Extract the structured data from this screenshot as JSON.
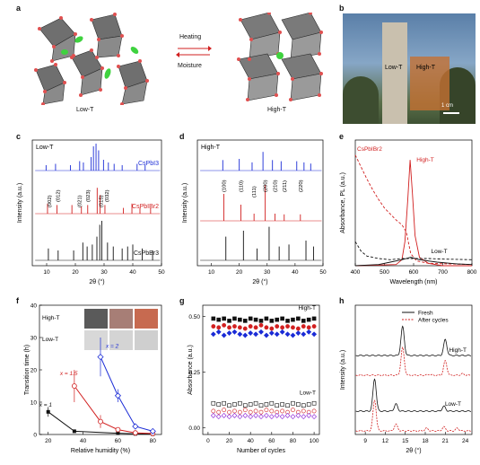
{
  "labels": {
    "a": "a",
    "b": "b",
    "c": "c",
    "d": "d",
    "e": "e",
    "f": "f",
    "g": "g",
    "h": "h"
  },
  "panel_a": {
    "low_label": "Low-T",
    "high_label": "High-T",
    "heating": "Heating",
    "moisture": "Moisture",
    "colors": {
      "octahedron": "#6f6f6f",
      "vertex": "#e05050",
      "cs": "#3fd23f"
    }
  },
  "panel_b": {
    "low_label": "Low-T",
    "high_label": "High-T",
    "scale": "1 cm"
  },
  "chart_data": [
    {
      "panel": "c",
      "type": "line",
      "title": "Low-T",
      "xlabel": "2θ (°)",
      "ylabel": "Intensity (a.u.)",
      "xlim": [
        5,
        50
      ],
      "xticks": [
        10,
        20,
        30,
        40,
        50
      ],
      "series": [
        {
          "name": "CsPbI3",
          "color": "#1a2bd6",
          "peaks": [
            [
              9.8,
              0.2
            ],
            [
              13.1,
              0.25
            ],
            [
              18.3,
              0.2
            ],
            [
              21.5,
              0.35
            ],
            [
              22.8,
              0.3
            ],
            [
              25.5,
              0.5
            ],
            [
              26.3,
              0.9
            ],
            [
              27.2,
              1.0
            ],
            [
              28.1,
              0.75
            ],
            [
              29.8,
              0.4
            ],
            [
              31.5,
              0.3
            ],
            [
              33.5,
              0.25
            ],
            [
              36.3,
              0.2
            ],
            [
              41.5,
              0.25
            ],
            [
              44.3,
              0.2
            ]
          ]
        },
        {
          "name": "CsPbIBr2",
          "color": "#d11f1f",
          "peaks": [
            [
              10.3,
              0.35
            ],
            [
              13.6,
              0.3
            ],
            [
              18.8,
              0.3
            ],
            [
              22.1,
              0.25
            ],
            [
              24.3,
              0.3
            ],
            [
              27.6,
              0.9
            ],
            [
              28.6,
              0.65
            ],
            [
              30.3,
              0.3
            ],
            [
              36.7,
              0.2
            ],
            [
              39.7,
              0.35
            ],
            [
              42.5,
              0.2
            ],
            [
              46.2,
              0.2
            ]
          ]
        },
        {
          "name": "CsPbBr3",
          "color": "#111111",
          "peaks": [
            [
              10.6,
              0.3
            ],
            [
              14.0,
              0.25
            ],
            [
              19.4,
              0.25
            ],
            [
              22.6,
              0.45
            ],
            [
              24.1,
              0.35
            ],
            [
              25.9,
              0.4
            ],
            [
              27.5,
              0.6
            ],
            [
              28.5,
              0.9
            ],
            [
              29.2,
              1.0
            ],
            [
              31.2,
              0.45
            ],
            [
              33.2,
              0.35
            ],
            [
              36.3,
              0.3
            ],
            [
              38.2,
              0.35
            ],
            [
              40.0,
              0.4
            ],
            [
              43.3,
              0.3
            ],
            [
              46.9,
              0.25
            ]
          ]
        }
      ],
      "annotations": [
        "(002)",
        "(012)",
        "(021)",
        "(023)",
        "(015)",
        "(032)"
      ]
    },
    {
      "panel": "d",
      "type": "line",
      "title": "High-T",
      "xlabel": "2θ (°)",
      "ylabel": "Intensity (a.u.)",
      "xlim": [
        5,
        50
      ],
      "xticks": [
        10,
        20,
        30,
        40,
        50
      ],
      "series": [
        {
          "name": "",
          "color": "#1a2bd6",
          "peaks": [
            [
              14.1,
              0.45
            ],
            [
              20.0,
              0.5
            ],
            [
              24.6,
              0.35
            ],
            [
              28.5,
              0.8
            ],
            [
              31.9,
              0.45
            ],
            [
              35.0,
              0.4
            ],
            [
              40.6,
              0.4
            ],
            [
              43.2,
              0.35
            ],
            [
              45.6,
              0.3
            ]
          ]
        },
        {
          "name": "",
          "color": "#d11f1f",
          "peaks": [
            [
              14.5,
              0.75
            ],
            [
              20.6,
              0.45
            ],
            [
              25.3,
              0.2
            ],
            [
              29.3,
              1.0
            ],
            [
              32.8,
              0.2
            ],
            [
              36.1,
              0.18
            ],
            [
              41.9,
              0.18
            ]
          ]
        },
        {
          "name": "",
          "color": "#111111",
          "peaks": [
            [
              15.2,
              0.6
            ],
            [
              21.5,
              0.75
            ],
            [
              26.4,
              0.3
            ],
            [
              30.7,
              0.85
            ],
            [
              34.3,
              0.35
            ],
            [
              37.8,
              0.4
            ],
            [
              43.9,
              0.5
            ],
            [
              46.6,
              0.35
            ]
          ]
        }
      ],
      "annotations": [
        "(100)",
        "(110)",
        "(111)",
        "(200)",
        "(210)",
        "(211)",
        "(220)"
      ]
    },
    {
      "panel": "e",
      "type": "line",
      "xlabel": "Wavelength (nm)",
      "ylabel": "Absorbance, PL (a.u.)",
      "xlim": [
        400,
        800
      ],
      "xticks": [
        400,
        500,
        600,
        700,
        800
      ],
      "labels": {
        "compound": "CsPbIBr2",
        "high": "High-T",
        "low": "Low-T"
      },
      "series": [
        {
          "name": "High-T",
          "style": "dashed",
          "color": "#d11f1f",
          "points": [
            [
              400,
              0.92
            ],
            [
              420,
              0.82
            ],
            [
              440,
              0.72
            ],
            [
              460,
              0.63
            ],
            [
              480,
              0.55
            ],
            [
              500,
              0.48
            ],
            [
              520,
              0.43
            ],
            [
              540,
              0.38
            ],
            [
              560,
              0.34
            ],
            [
              575,
              0.28
            ],
            [
              590,
              0.1
            ],
            [
              610,
              0.04
            ],
            [
              650,
              0.02
            ],
            [
              800,
              0.01
            ]
          ]
        },
        {
          "name": "High-T PL",
          "style": "solid",
          "color": "#d11f1f",
          "points": [
            [
              400,
              0.0
            ],
            [
              540,
              0.01
            ],
            [
              560,
              0.05
            ],
            [
              570,
              0.2
            ],
            [
              580,
              0.55
            ],
            [
              588,
              0.88
            ],
            [
              596,
              0.6
            ],
            [
              605,
              0.25
            ],
            [
              620,
              0.07
            ],
            [
              650,
              0.02
            ],
            [
              700,
              0.0
            ],
            [
              800,
              0.0
            ]
          ]
        },
        {
          "name": "Low-T",
          "style": "dashed",
          "color": "#111111",
          "points": [
            [
              400,
              0.2
            ],
            [
              420,
              0.12
            ],
            [
              440,
              0.08
            ],
            [
              480,
              0.06
            ],
            [
              520,
              0.05
            ],
            [
              560,
              0.06
            ],
            [
              600,
              0.06
            ],
            [
              650,
              0.06
            ],
            [
              700,
              0.055
            ],
            [
              800,
              0.05
            ]
          ]
        },
        {
          "name": "Low-T PL",
          "style": "solid",
          "color": "#111111",
          "points": [
            [
              400,
              0.0
            ],
            [
              480,
              0.01
            ],
            [
              520,
              0.03
            ],
            [
              560,
              0.05
            ],
            [
              590,
              0.07
            ],
            [
              620,
              0.05
            ],
            [
              680,
              0.03
            ],
            [
              750,
              0.015
            ],
            [
              800,
              0.01
            ]
          ]
        }
      ]
    },
    {
      "panel": "f",
      "type": "line",
      "xlabel": "Relative humidity (%)",
      "ylabel": "Transition time (h)",
      "xlim": [
        15,
        85
      ],
      "ylim": [
        0,
        40
      ],
      "xticks": [
        20,
        40,
        60,
        80
      ],
      "yticks": [
        0,
        10,
        20,
        30,
        40
      ],
      "row_labels": {
        "high": "High-T",
        "low": "Low-T"
      },
      "series": [
        {
          "name": "x = 1",
          "color": "#111111",
          "marker": "square",
          "points": [
            [
              20,
              7
            ],
            [
              35,
              1
            ],
            [
              60,
              0.4
            ],
            [
              70,
              0.2
            ],
            [
              80,
              0.1
            ]
          ],
          "err": [
            1.5,
            0,
            0,
            0,
            0
          ]
        },
        {
          "name": "x = 1.5",
          "color": "#d11f1f",
          "marker": "circle-open",
          "points": [
            [
              35,
              15
            ],
            [
              50,
              4
            ],
            [
              60,
              1.5
            ],
            [
              70,
              0.5
            ],
            [
              80,
              0.3
            ]
          ],
          "err": [
            5,
            2,
            0.5,
            0,
            0
          ]
        },
        {
          "name": "x = 2",
          "color": "#1a2bd6",
          "marker": "diamond-open",
          "points": [
            [
              50,
              24
            ],
            [
              60,
              12
            ],
            [
              70,
              2.5
            ],
            [
              80,
              1
            ]
          ],
          "err": [
            6,
            2,
            0.5,
            0
          ]
        }
      ]
    },
    {
      "panel": "g",
      "type": "scatter",
      "xlabel": "Number of cycles",
      "ylabel": "Absorbance (a.u.)",
      "xlim": [
        -5,
        105
      ],
      "ylim": [
        -0.03,
        0.55
      ],
      "xticks": [
        0,
        20,
        40,
        60,
        80,
        100
      ],
      "yticks": [
        0.0,
        0.25,
        0.5
      ],
      "labels": {
        "high": "High-T",
        "low": "Low-T"
      },
      "series": [
        {
          "color": "#111111",
          "marker": "square",
          "values": [
            0.49,
            0.485,
            0.49,
            0.48,
            0.49,
            0.485,
            0.48,
            0.49,
            0.485,
            0.48,
            0.49,
            0.48,
            0.485,
            0.49,
            0.48,
            0.485,
            0.49,
            0.48,
            0.485,
            0.49
          ]
        },
        {
          "color": "#d11f1f",
          "marker": "circle",
          "values": [
            0.455,
            0.45,
            0.46,
            0.45,
            0.455,
            0.45,
            0.445,
            0.455,
            0.45,
            0.46,
            0.45,
            0.445,
            0.455,
            0.45,
            0.455,
            0.45,
            0.445,
            0.455,
            0.45,
            0.455
          ]
        },
        {
          "color": "#1a2bd6",
          "marker": "diamond",
          "values": [
            0.42,
            0.43,
            0.415,
            0.425,
            0.43,
            0.42,
            0.415,
            0.425,
            0.42,
            0.43,
            0.415,
            0.425,
            0.42,
            0.43,
            0.42,
            0.415,
            0.425,
            0.42,
            0.43,
            0.42
          ]
        },
        {
          "color": "#111111",
          "marker": "square-open",
          "values": [
            0.11,
            0.105,
            0.11,
            0.1,
            0.105,
            0.11,
            0.1,
            0.105,
            0.11,
            0.1,
            0.105,
            0.11,
            0.1,
            0.105,
            0.1,
            0.11,
            0.105,
            0.1,
            0.105,
            0.11
          ]
        },
        {
          "color": "#d11f1f",
          "marker": "circle-open",
          "values": [
            0.075,
            0.07,
            0.08,
            0.07,
            0.075,
            0.07,
            0.08,
            0.07,
            0.075,
            0.07,
            0.08,
            0.075,
            0.07,
            0.075,
            0.07,
            0.08,
            0.07,
            0.075,
            0.07,
            0.075
          ]
        },
        {
          "color": "#8a1fd6",
          "marker": "diamond-open",
          "values": [
            0.055,
            0.05,
            0.055,
            0.05,
            0.055,
            0.05,
            0.055,
            0.05,
            0.055,
            0.05,
            0.055,
            0.05,
            0.055,
            0.05,
            0.055,
            0.05,
            0.055,
            0.05,
            0.055,
            0.05
          ]
        }
      ]
    },
    {
      "panel": "h",
      "type": "line",
      "xlabel": "2θ (°)",
      "ylabel": "Intensity (a.u.)",
      "xlim": [
        7.5,
        25
      ],
      "xticks": [
        9,
        12,
        15,
        18,
        21,
        24
      ],
      "labels": {
        "high": "High-T",
        "low": "Low-T"
      },
      "series": [
        {
          "name": "Fresh",
          "style": "solid",
          "color": "#111111"
        },
        {
          "name": "After cycles",
          "style": "dashed",
          "color": "#d11f1f"
        }
      ]
    }
  ]
}
